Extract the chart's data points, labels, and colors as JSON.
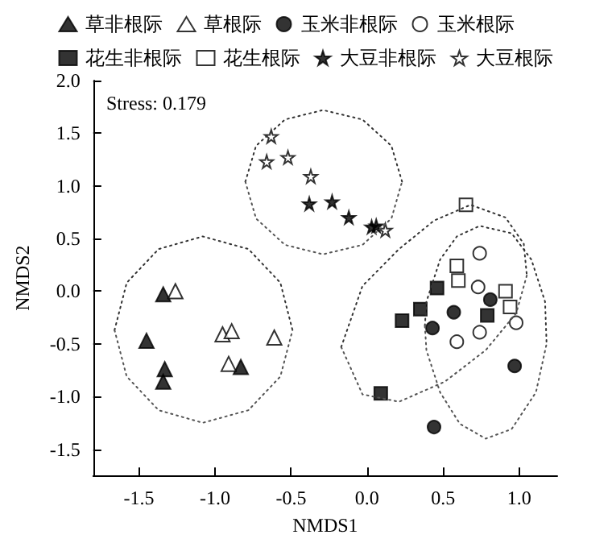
{
  "chart_data": {
    "type": "scatter",
    "xlabel": "NMDS1",
    "ylabel": "NMDS2",
    "annotations": [
      "Stress: 0.179"
    ],
    "xlim": [
      -1.8,
      1.25
    ],
    "ylim": [
      -1.75,
      2.0
    ],
    "xticks": [
      {
        "value": -1.5,
        "label": "-1.5"
      },
      {
        "value": -1,
        "label": "-1.0"
      },
      {
        "value": -0.5,
        "label": "-0.5"
      },
      {
        "value": 0,
        "label": "0.0"
      },
      {
        "value": 0.5,
        "label": "0.5"
      },
      {
        "value": 1,
        "label": "1.0"
      }
    ],
    "yticks": [
      {
        "value": -1.5,
        "label": "-1.5"
      },
      {
        "value": -1,
        "label": "-1.0"
      },
      {
        "value": -0.5,
        "label": "-0.5"
      },
      {
        "value": 0,
        "label": "0.0"
      },
      {
        "value": 0.5,
        "label": "0.5"
      },
      {
        "value": 1,
        "label": "1.0"
      },
      {
        "value": 1.5,
        "label": "1.5"
      },
      {
        "value": 2,
        "label": "2.0"
      }
    ],
    "grid": false,
    "legend": "top",
    "series": [
      {
        "name": "草非根际",
        "color": "#000000",
        "marker": "triangle",
        "x": [
          -1.34,
          -1.45,
          -1.33,
          -1.34,
          -0.83
        ],
        "values": [
          -0.03,
          -0.47,
          -0.74,
          -0.86,
          -0.72
        ]
      },
      {
        "name": "草根际",
        "color": "#ffffff",
        "marker": "triangle",
        "x": [
          -1.26,
          -0.95,
          -0.89,
          -0.91,
          -0.61
        ],
        "values": [
          0.0,
          -0.41,
          -0.38,
          -0.69,
          -0.44
        ]
      },
      {
        "name": "玉米非根际",
        "color": "#000000",
        "marker": "circle",
        "x": [
          0.81,
          0.57,
          0.43,
          0.97,
          0.44
        ],
        "values": [
          -0.08,
          -0.2,
          -0.35,
          -0.71,
          -1.29
        ]
      },
      {
        "name": "玉米根际",
        "color": "#ffffff",
        "marker": "circle",
        "x": [
          0.74,
          0.73,
          0.98,
          0.74,
          0.59
        ],
        "values": [
          0.36,
          0.04,
          -0.3,
          -0.39,
          -0.48
        ]
      },
      {
        "name": "花生非根际",
        "color": "#000000",
        "marker": "square",
        "x": [
          0.46,
          0.35,
          0.23,
          0.79,
          0.09
        ],
        "values": [
          0.03,
          -0.17,
          -0.28,
          -0.23,
          -0.97
        ]
      },
      {
        "name": "花生根际",
        "color": "#ffffff",
        "marker": "square",
        "x": [
          0.65,
          0.59,
          0.6,
          0.91,
          0.94
        ],
        "values": [
          0.82,
          0.24,
          0.1,
          0.0,
          -0.15
        ]
      },
      {
        "name": "大豆非根际",
        "color": "#000000",
        "marker": "star",
        "x": [
          -0.38,
          -0.23,
          -0.12,
          0.03,
          0.06
        ],
        "values": [
          0.83,
          0.85,
          0.7,
          0.61,
          0.62
        ]
      },
      {
        "name": "大豆根际",
        "color": "#ffffff",
        "marker": "star",
        "x": [
          -0.63,
          -0.66,
          -0.52,
          -0.37,
          0.12
        ],
        "values": [
          1.47,
          1.23,
          1.27,
          1.09,
          0.58
        ]
      },
      {
        "type": "line",
        "color": "#333333",
        "line_style": "dotted",
        "marker": "none",
        "x": [
          -1.66,
          -1.58,
          -1.37,
          -1.08,
          -0.78,
          -0.57,
          -0.49
        ],
        "values": [
          -0.37,
          0.08,
          0.4,
          0.52,
          0.4,
          0.08,
          -0.37
        ]
      },
      {
        "type": "line",
        "color": "#555555",
        "line_style": "dotted",
        "marker": "none",
        "x": [
          -1.66,
          -1.58,
          -1.37,
          -1.08,
          -0.78,
          -0.57,
          -0.49
        ],
        "values": [
          -0.37,
          -0.81,
          -1.13,
          -1.25,
          -1.13,
          -0.81,
          -0.37
        ]
      },
      {
        "type": "line",
        "color": "#333333",
        "line_style": "dotted",
        "marker": "none",
        "x": [
          -0.8,
          -0.73,
          -0.54,
          -0.29,
          -0.03,
          0.16,
          0.23
        ],
        "values": [
          1.04,
          1.38,
          1.63,
          1.72,
          1.63,
          1.38,
          1.04
        ]
      },
      {
        "type": "line",
        "color": "#555555",
        "line_style": "dotted",
        "marker": "none",
        "x": [
          -0.8,
          -0.73,
          -0.54,
          -0.29,
          -0.03,
          0.16,
          0.23
        ],
        "values": [
          1.04,
          0.69,
          0.44,
          0.35,
          0.44,
          0.69,
          1.04
        ]
      },
      {
        "type": "line",
        "color": "#333333",
        "line_style": "dotted",
        "marker": "none",
        "x": [
          -0.17,
          -0.03,
          0.21,
          0.44,
          0.68,
          0.91,
          1.03,
          1.05
        ],
        "values": [
          -0.53,
          0.05,
          0.4,
          0.67,
          0.82,
          0.7,
          0.45,
          0.15
        ]
      },
      {
        "type": "line",
        "color": "#555555",
        "line_style": "dotted",
        "marker": "none",
        "x": [
          -0.17,
          -0.03,
          0.21,
          0.51,
          0.78,
          0.98,
          1.05
        ],
        "values": [
          -0.53,
          -0.98,
          -1.05,
          -0.86,
          -0.56,
          -0.21,
          0.15
        ]
      },
      {
        "type": "line",
        "color": "#333333",
        "line_style": "dotted",
        "marker": "none",
        "x": [
          0.38,
          0.39,
          0.48,
          0.59,
          0.74,
          0.95,
          1.08,
          1.17,
          1.18
        ],
        "values": [
          -0.33,
          -0.1,
          0.3,
          0.52,
          0.62,
          0.55,
          0.3,
          -0.1,
          -0.5
        ]
      },
      {
        "type": "line",
        "color": "#555555",
        "line_style": "dotted",
        "marker": "none",
        "x": [
          0.38,
          0.39,
          0.48,
          0.61,
          0.78,
          0.95,
          1.11,
          1.18
        ],
        "values": [
          -0.33,
          -0.56,
          -0.96,
          -1.26,
          -1.4,
          -1.31,
          -0.96,
          -0.5
        ]
      }
    ]
  }
}
